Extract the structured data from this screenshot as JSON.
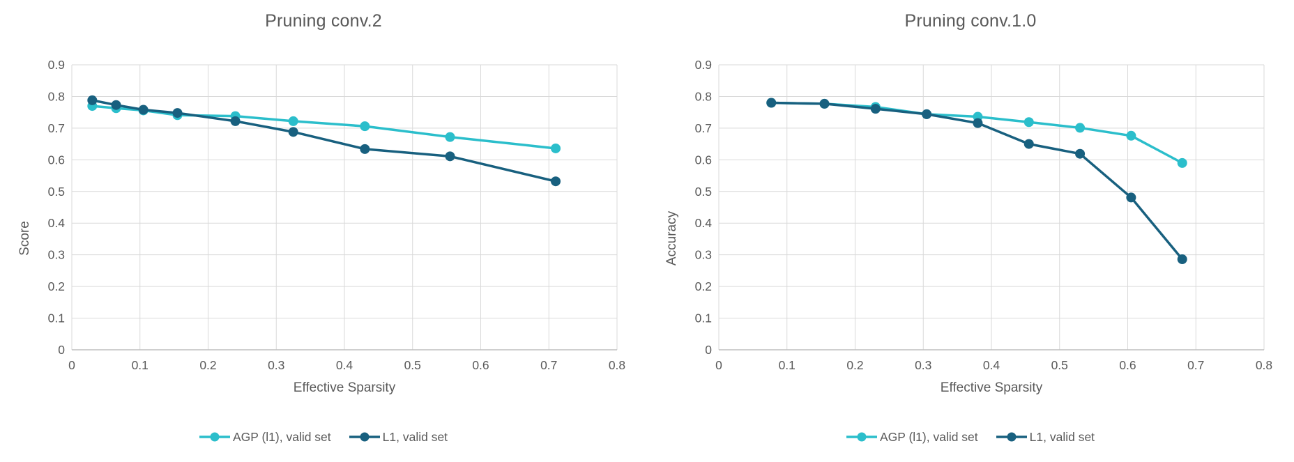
{
  "figure": {
    "background": "#ffffff",
    "text_color": "#595959",
    "gridline_color": "#d9d9d9",
    "axis_line_color": "#bfbfbf"
  },
  "chart_data": [
    {
      "type": "line",
      "title": "Pruning conv.2",
      "xlabel": "Effective Sparsity",
      "ylabel": "Score",
      "xlim": [
        0,
        0.8
      ],
      "ylim": [
        0,
        0.9
      ],
      "grid": true,
      "legend_position": "bottom",
      "x_ticks": [
        "0",
        "0.1",
        "0.2",
        "0.3",
        "0.4",
        "0.5",
        "0.6",
        "0.7",
        "0.8"
      ],
      "y_ticks": [
        "0.9",
        "0.8",
        "0.7",
        "0.6",
        "0.5",
        "0.4",
        "0.3",
        "0.2",
        "0.1",
        "0"
      ],
      "series": [
        {
          "name": "AGP (l1), valid set",
          "color": "#2bbecb",
          "x": [
            0.03,
            0.065,
            0.105,
            0.155,
            0.24,
            0.325,
            0.43,
            0.555,
            0.71
          ],
          "y": [
            0.77,
            0.763,
            0.756,
            0.741,
            0.738,
            0.722,
            0.706,
            0.672,
            0.636
          ]
        },
        {
          "name": "L1, valid set",
          "color": "#18607f",
          "x": [
            0.03,
            0.065,
            0.105,
            0.155,
            0.24,
            0.325,
            0.43,
            0.555,
            0.71
          ],
          "y": [
            0.788,
            0.773,
            0.758,
            0.748,
            0.722,
            0.688,
            0.634,
            0.611,
            0.532
          ]
        }
      ]
    },
    {
      "type": "line",
      "title": "Pruning conv.1.0",
      "xlabel": "Effective Sparsity",
      "ylabel": "Accuracy",
      "xlim": [
        0,
        0.8
      ],
      "ylim": [
        0,
        0.9
      ],
      "grid": true,
      "legend_position": "bottom",
      "x_ticks": [
        "0",
        "0.1",
        "0.2",
        "0.3",
        "0.4",
        "0.5",
        "0.6",
        "0.7",
        "0.8"
      ],
      "y_ticks": [
        "0.9",
        "0.8",
        "0.7",
        "0.6",
        "0.5",
        "0.4",
        "0.3",
        "0.2",
        "0.1",
        "0"
      ],
      "series": [
        {
          "name": "AGP (l1), valid set",
          "color": "#2bbecb",
          "x": [
            0.077,
            0.155,
            0.23,
            0.305,
            0.38,
            0.455,
            0.53,
            0.605,
            0.68
          ],
          "y": [
            0.78,
            0.777,
            0.767,
            0.744,
            0.736,
            0.719,
            0.701,
            0.676,
            0.59
          ]
        },
        {
          "name": "L1, valid set",
          "color": "#18607f",
          "x": [
            0.077,
            0.155,
            0.23,
            0.305,
            0.38,
            0.455,
            0.53,
            0.605,
            0.68
          ],
          "y": [
            0.78,
            0.777,
            0.761,
            0.744,
            0.716,
            0.65,
            0.619,
            0.481,
            0.286
          ]
        }
      ]
    }
  ]
}
